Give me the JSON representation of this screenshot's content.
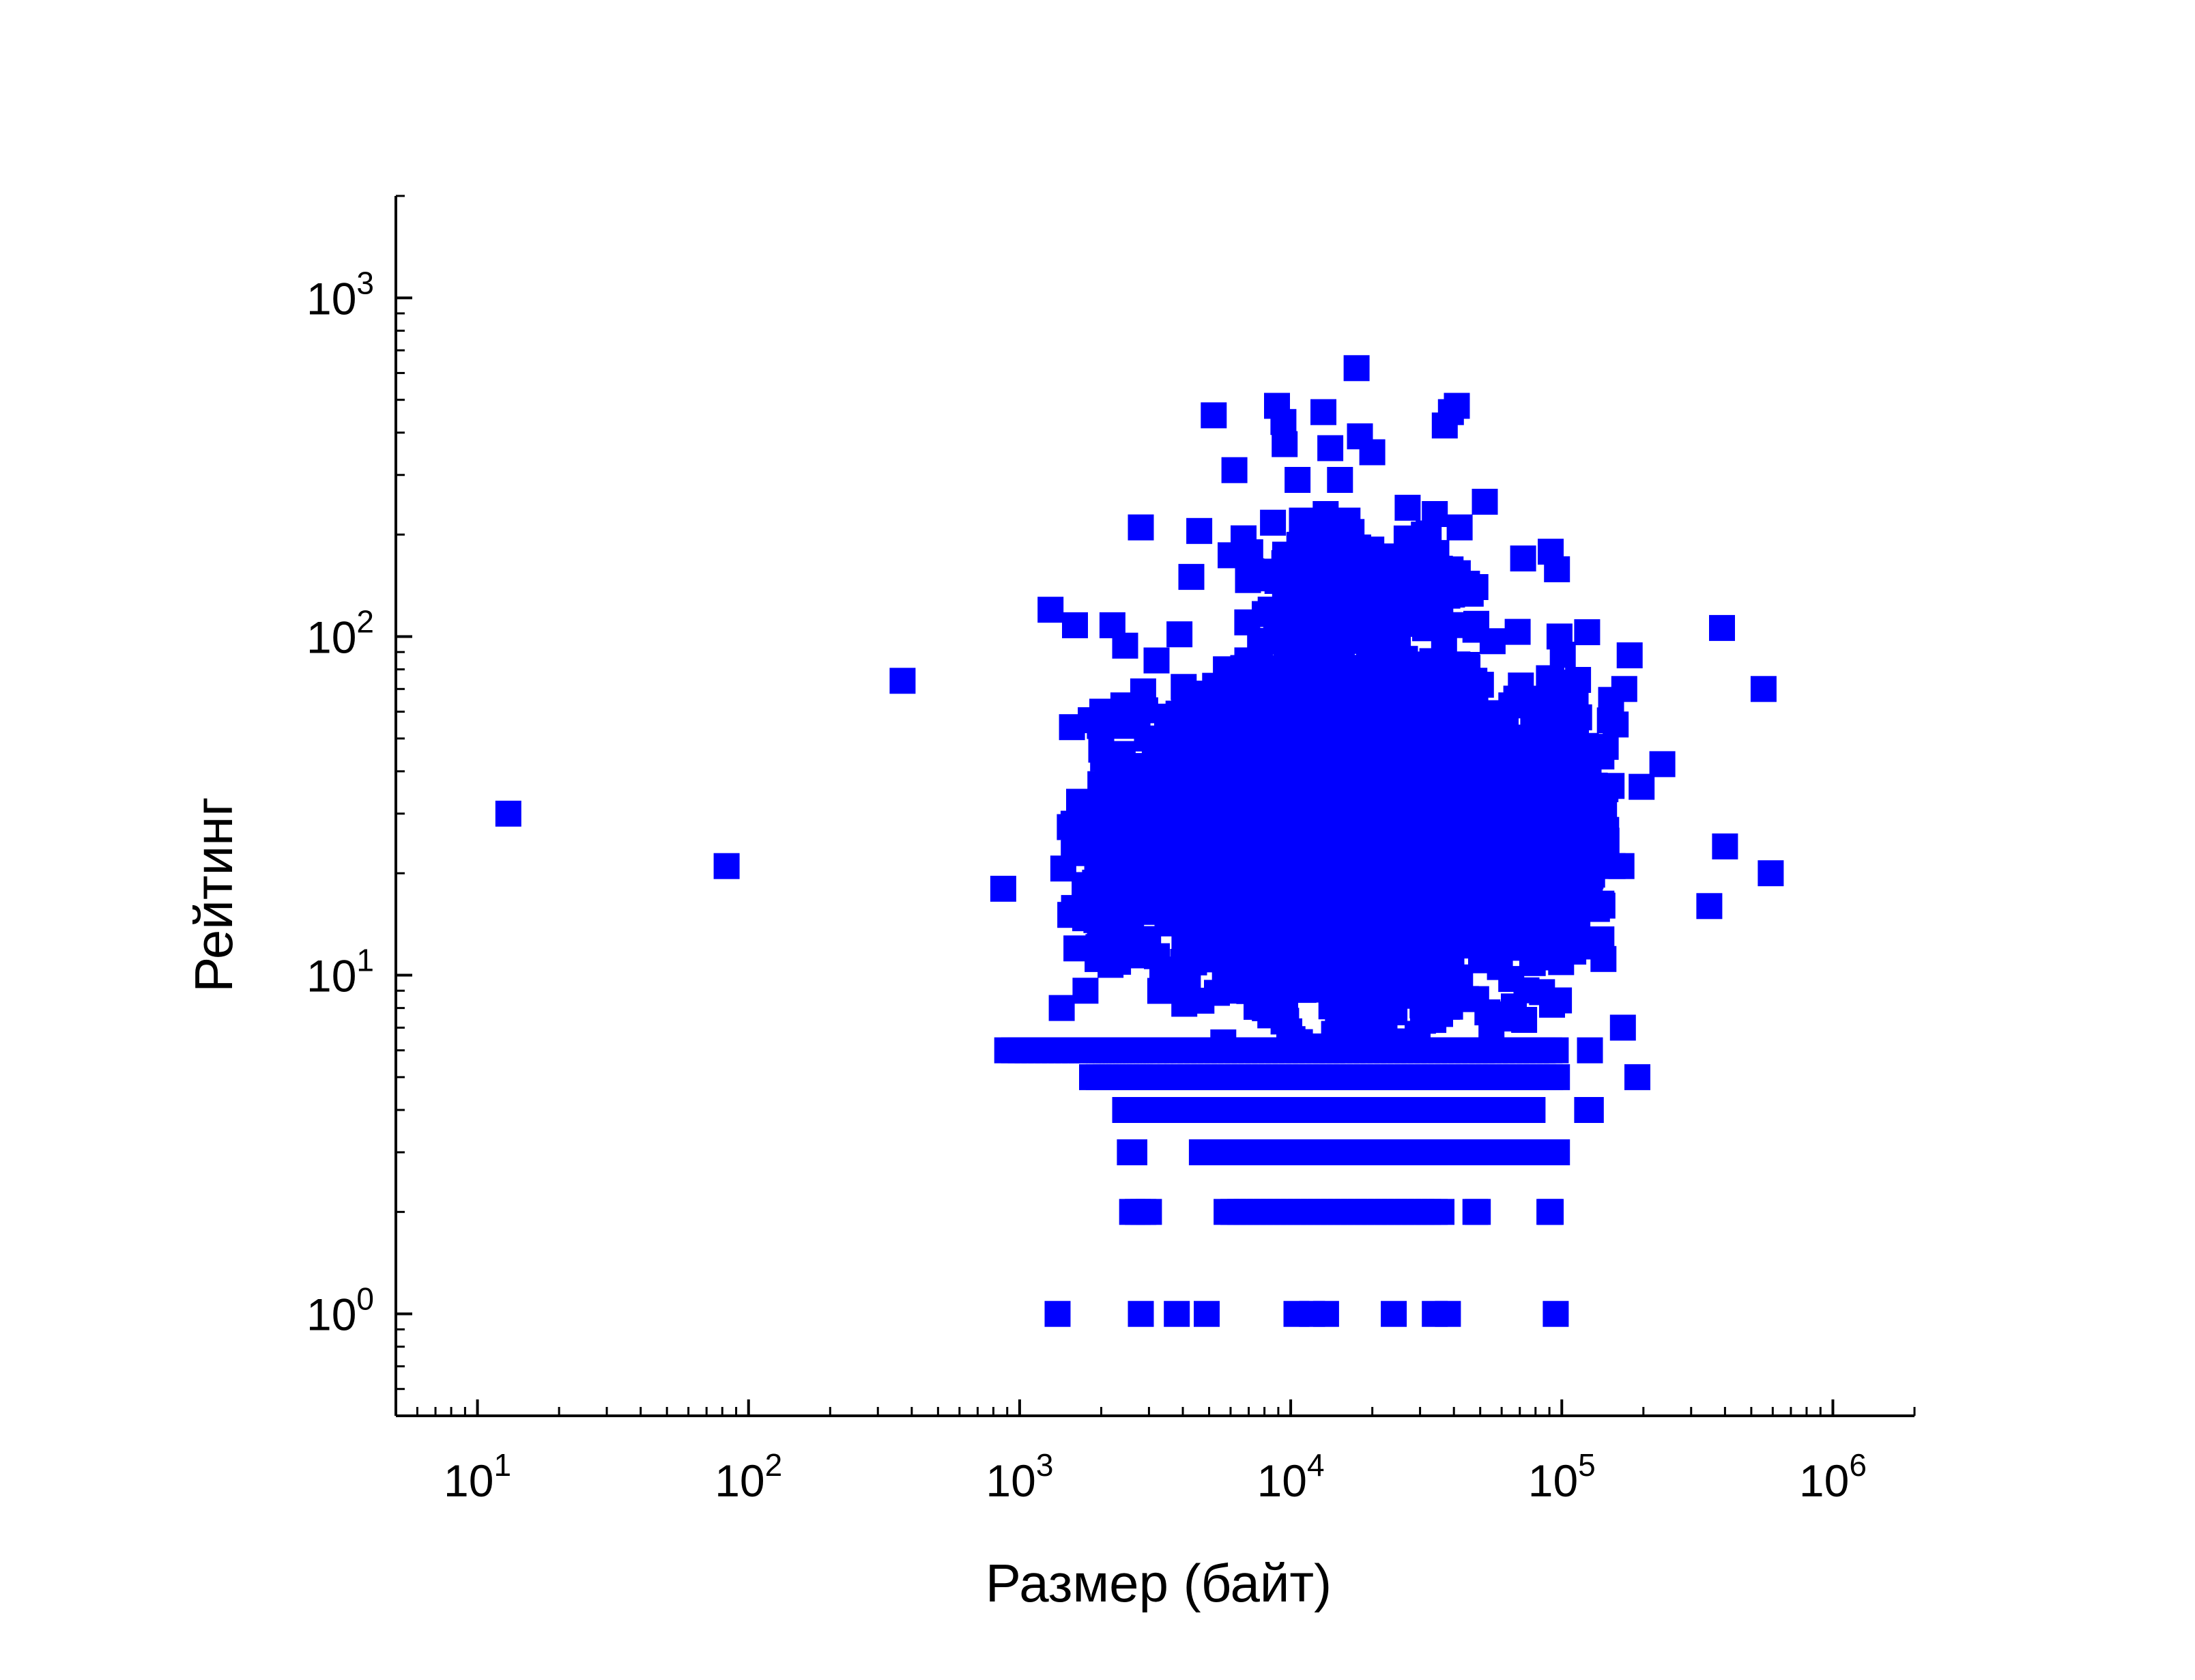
{
  "chart_data": {
    "type": "scatter",
    "title": "",
    "xlabel": "Размер (байт)",
    "ylabel": "Рейтинг",
    "xscale": "log",
    "yscale": "log",
    "xlim": [
      5,
      2000000
    ],
    "ylim": [
      0.5,
      2000
    ],
    "grid": false,
    "legend": "none",
    "marker": "square",
    "color": "#0000ff",
    "x_ticks": [
      {
        "value": 10,
        "base": "10",
        "exp": "1"
      },
      {
        "value": 100,
        "base": "10",
        "exp": "2"
      },
      {
        "value": 1000,
        "base": "10",
        "exp": "3"
      },
      {
        "value": 10000,
        "base": "10",
        "exp": "4"
      },
      {
        "value": 100000,
        "base": "10",
        "exp": "5"
      },
      {
        "value": 1000000,
        "base": "10",
        "exp": "6"
      }
    ],
    "y_ticks": [
      {
        "value": 1,
        "base": "10",
        "exp": "0"
      },
      {
        "value": 10,
        "base": "10",
        "exp": "1"
      },
      {
        "value": 100,
        "base": "10",
        "exp": "2"
      },
      {
        "value": 1000,
        "base": "10",
        "exp": "3"
      }
    ],
    "series": [
      {
        "points": [
          [
            13,
            30
          ],
          [
            83,
            21
          ],
          [
            370,
            74
          ],
          [
            870,
            18
          ],
          [
            1300,
            120
          ],
          [
            1600,
            108
          ],
          [
            2200,
            108
          ],
          [
            2450,
            94
          ],
          [
            2800,
            210
          ],
          [
            3200,
            85
          ],
          [
            4300,
            150
          ],
          [
            4600,
            205
          ],
          [
            5200,
            450
          ],
          [
            6200,
            310
          ],
          [
            6700,
            195
          ],
          [
            8900,
            480
          ],
          [
            9400,
            430
          ],
          [
            9500,
            370
          ],
          [
            10600,
            290
          ],
          [
            11000,
            220
          ],
          [
            13200,
            460
          ],
          [
            14000,
            360
          ],
          [
            15200,
            290
          ],
          [
            16200,
            220
          ],
          [
            17500,
            620
          ],
          [
            18000,
            390
          ],
          [
            20000,
            350
          ],
          [
            27000,
            240
          ],
          [
            31000,
            200
          ],
          [
            34000,
            230
          ],
          [
            37000,
            420
          ],
          [
            39000,
            460
          ],
          [
            41000,
            480
          ],
          [
            42000,
            210
          ],
          [
            52000,
            250
          ],
          [
            48000,
            140
          ],
          [
            72000,
            170
          ],
          [
            91000,
            178
          ],
          [
            96000,
            158
          ],
          [
            124000,
            103
          ],
          [
            178000,
            88
          ],
          [
            170000,
            70
          ],
          [
            152000,
            65
          ],
          [
            158000,
            55
          ],
          [
            235000,
            42
          ],
          [
            197000,
            36
          ],
          [
            390000,
            106
          ],
          [
            555000,
            70
          ],
          [
            400000,
            24
          ],
          [
            590000,
            20
          ],
          [
            350000,
            16
          ],
          [
            190000,
            5
          ],
          [
            168000,
            7
          ],
          [
            127000,
            6
          ],
          [
            154000,
            21
          ],
          [
            166000,
            21
          ],
          [
            1560,
            54
          ],
          [
            2100,
            58
          ],
          [
            1750,
            16
          ],
          [
            1620,
            12
          ],
          [
            1430,
            8
          ],
          [
            1750,
            9
          ],
          [
            2300,
            30
          ],
          [
            2400,
            45
          ],
          [
            2950,
            50
          ],
          [
            3500,
            58
          ],
          [
            4000,
            45
          ],
          [
            4500,
            36
          ]
        ],
        "dense_regions": [
          {
            "x": [
              2000,
              140000
            ],
            "y": [
              6,
              120
            ],
            "count": 3500
          },
          {
            "x": [
              5000,
              60000
            ],
            "y": [
              10,
              90
            ],
            "count": 2500
          },
          {
            "x": [
              1400,
              3500
            ],
            "y": [
              8,
              60
            ],
            "count": 140
          },
          {
            "x": [
              60000,
              160000
            ],
            "y": [
              8,
              100
            ],
            "count": 300
          },
          {
            "x": [
              6000,
              60000
            ],
            "y": [
              80,
              230
            ],
            "count": 350
          }
        ],
        "rows": [
          {
            "y": 6,
            "x_from": 900,
            "x_to": 60000
          },
          {
            "y": 6,
            "x_from": 64000,
            "x_to": 95000
          },
          {
            "y": 5,
            "x_from": 1850,
            "x_to": 3300
          },
          {
            "y": 5,
            "x_from": 3600,
            "x_to": 96000
          },
          {
            "y": 4,
            "x_from": 2450,
            "x_to": 2600
          },
          {
            "y": 4,
            "x_from": 3000,
            "x_to": 3250
          },
          {
            "y": 4,
            "x_from": 3500,
            "x_to": 60000
          },
          {
            "y": 4,
            "x_from": 72000,
            "x_to": 78000
          },
          {
            "y": 4,
            "x_from": 124000,
            "x_to": 128000
          },
          {
            "y": 3,
            "x_from": 2550,
            "x_to": 2650
          },
          {
            "y": 3,
            "x_from": 4700,
            "x_to": 4800
          },
          {
            "y": 3,
            "x_from": 5900,
            "x_to": 52000
          },
          {
            "y": 3,
            "x_from": 59000,
            "x_to": 96000
          },
          {
            "y": 2,
            "x_from": 2600,
            "x_to": 3000
          },
          {
            "y": 2,
            "x_from": 5800,
            "x_to": 36000
          },
          {
            "y": 2,
            "x_from": 48000,
            "x_to": 49000
          },
          {
            "y": 2,
            "x_from": 90000,
            "x_to": 91000
          }
        ],
        "y1_points": [
          1380,
          2800,
          3800,
          4900,
          10500,
          12000,
          13500,
          24000,
          34000,
          38000,
          95000
        ]
      }
    ]
  }
}
